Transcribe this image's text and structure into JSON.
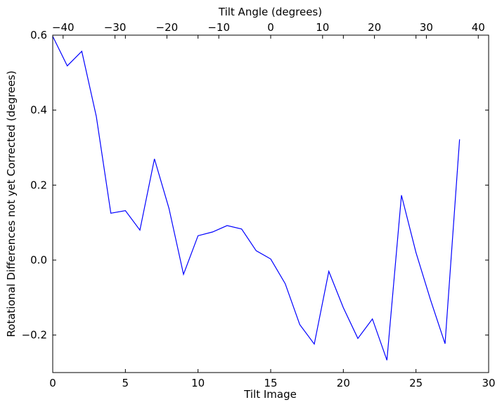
{
  "chart_data": {
    "type": "line",
    "xlabel": "Tilt Image",
    "ylabel": "Rotational Differences not yet Corrected (degrees)",
    "top_xlabel": "Tilt Angle (degrees)",
    "xlim": [
      0,
      30
    ],
    "ylim": [
      -0.3,
      0.6
    ],
    "top_xlim": [
      -42,
      42
    ],
    "grid": false,
    "x_ticks": [
      0,
      5,
      10,
      15,
      20,
      25,
      30
    ],
    "x_tick_labels": [
      "0",
      "5",
      "10",
      "15",
      "20",
      "25",
      "30"
    ],
    "y_ticks": [
      -0.2,
      0.0,
      0.2,
      0.4,
      0.6
    ],
    "y_tick_labels": [
      "−0.2",
      "0.0",
      "0.2",
      "0.4",
      "0.6"
    ],
    "top_x_ticks": [
      -40,
      -30,
      -20,
      -10,
      0,
      10,
      20,
      30,
      40
    ],
    "top_x_tick_labels": [
      "−40",
      "−30",
      "−20",
      "−10",
      "0",
      "10",
      "20",
      "30",
      "40"
    ],
    "series": [
      {
        "color": "#0000ff",
        "x": [
          0,
          1,
          2,
          3,
          4,
          5,
          6,
          7,
          8,
          9,
          10,
          11,
          12,
          13,
          14,
          15,
          16,
          17,
          18,
          19,
          20,
          21,
          22,
          23,
          24,
          25,
          26,
          27,
          28
        ],
        "values": [
          0.597,
          0.518,
          0.557,
          0.383,
          0.125,
          0.132,
          0.08,
          0.27,
          0.138,
          -0.038,
          0.065,
          0.075,
          0.092,
          0.083,
          0.025,
          0.003,
          -0.063,
          -0.172,
          -0.224,
          -0.03,
          -0.127,
          -0.209,
          -0.157,
          -0.267,
          0.173,
          0.02,
          -0.106,
          -0.223,
          0.322
        ]
      }
    ]
  }
}
